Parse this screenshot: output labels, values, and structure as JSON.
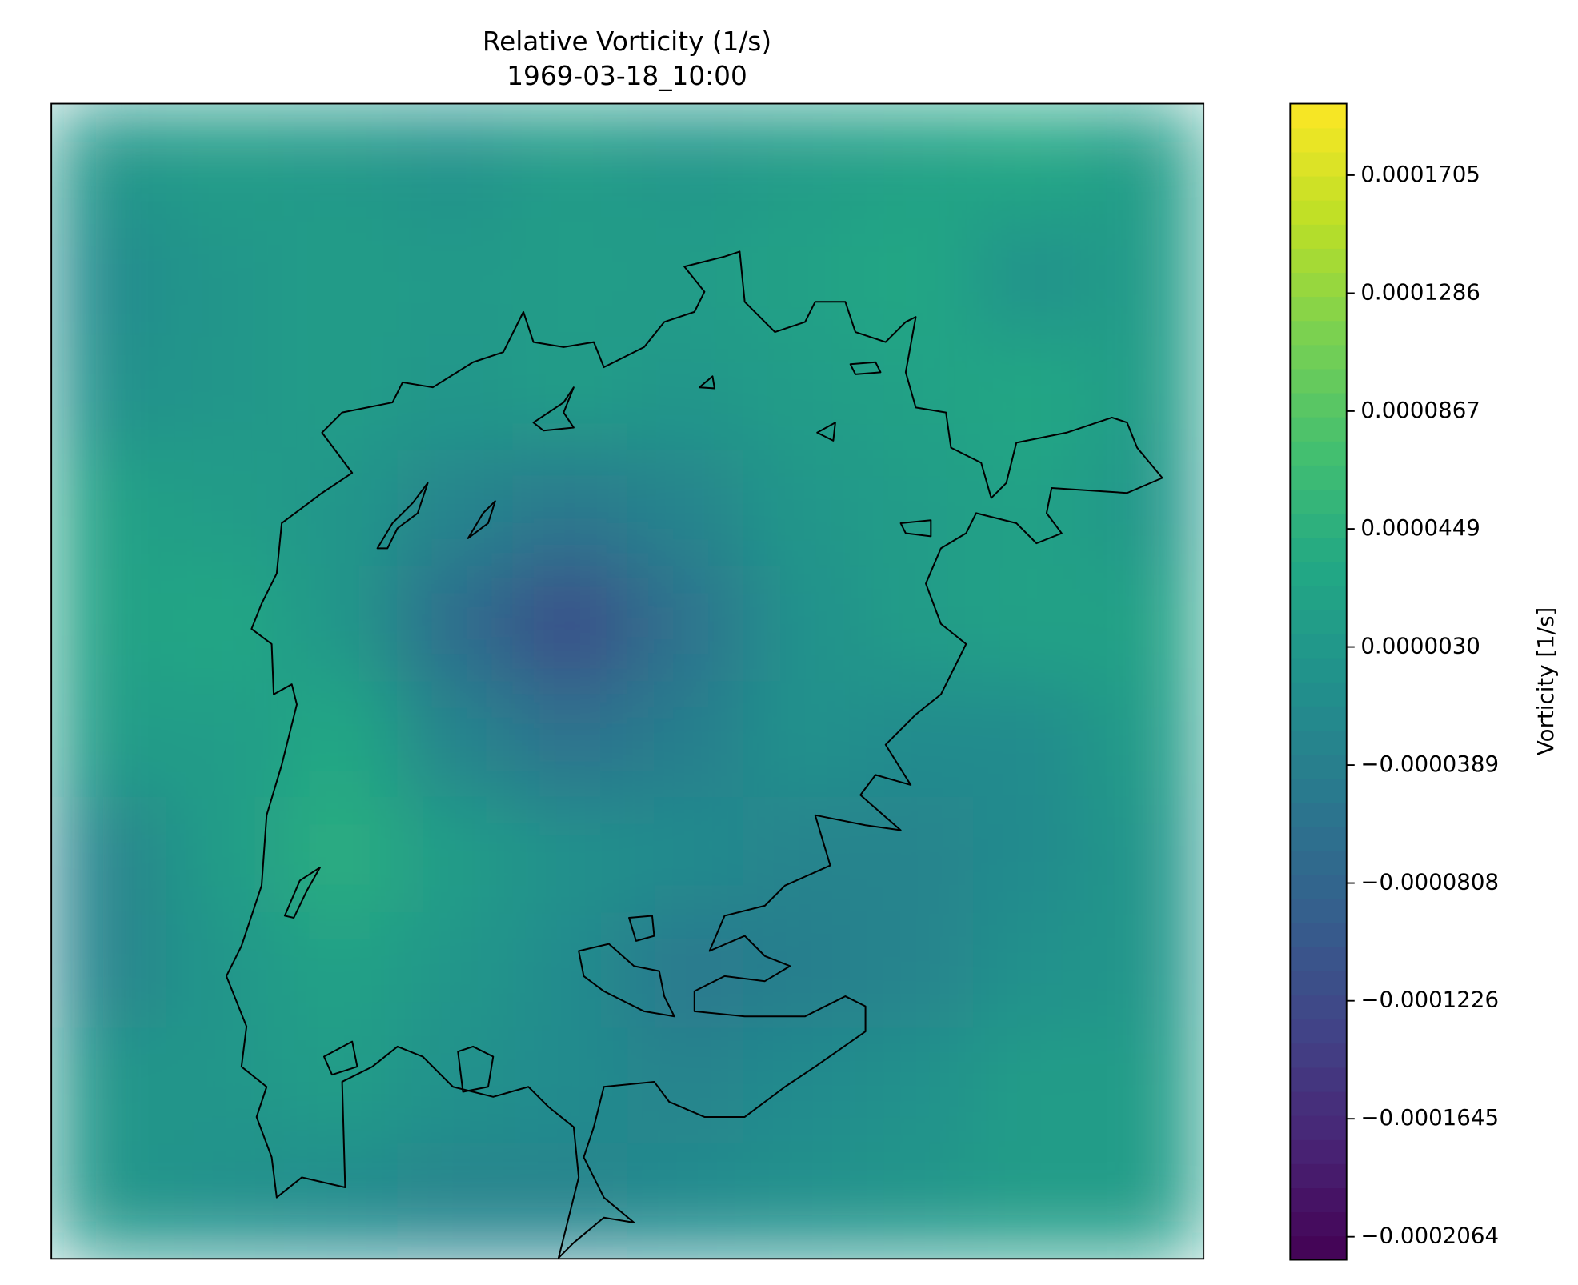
{
  "chart_data": {
    "type": "contour",
    "title": "Relative Vorticity (1/s)",
    "subtitle": "1969-03-18_10:00",
    "colorbar_label": "Vorticity [1/s]",
    "colormap": "viridis",
    "clim": [
      -0.0002146,
      0.0001959
    ],
    "cticks": [
      {
        "value": -0.0002064,
        "label": "−0.0002064"
      },
      {
        "value": -0.0001645,
        "label": "−0.0001645"
      },
      {
        "value": -0.0001226,
        "label": "−0.0001226"
      },
      {
        "value": -8.08e-05,
        "label": "−0.0000808"
      },
      {
        "value": -3.89e-05,
        "label": "−0.0000389"
      },
      {
        "value": 3e-06,
        "label": "0.0000030"
      },
      4.49e-05,
      8.67e-05,
      0.0001286,
      0.0001705
    ],
    "z": [
      [
        0,
        1e-05,
        5e-06,
        -5e-06,
        1e-05,
        0,
        1e-05,
        2e-05,
        3e-05,
        1e-05
      ],
      [
        -2e-05,
        0,
        1e-05,
        5e-06,
        1e-05,
        1e-05,
        2e-05,
        3e-05,
        -1e-05,
        1e-05
      ],
      [
        -1e-05,
        0,
        1e-05,
        0,
        1e-05,
        0,
        1e-05,
        2e-05,
        3e-05,
        1e-05
      ],
      [
        2e-05,
        1e-05,
        0,
        -3e-05,
        -5e-05,
        -3e-05,
        0,
        1e-05,
        2e-05,
        0
      ],
      [
        2e-05,
        3e-05,
        0,
        -7e-05,
        -0.00012,
        -6e-05,
        -1e-05,
        1e-05,
        2e-05,
        2e-05
      ],
      [
        1e-05,
        1e-05,
        3e-05,
        -3e-05,
        -6e-05,
        -4e-05,
        -1e-05,
        -2e-05,
        -2e-05,
        1e-05
      ],
      [
        -3e-05,
        1e-05,
        4e-05,
        1e-05,
        -1e-05,
        -2e-05,
        -3e-05,
        -3e-05,
        -2e-05,
        0
      ],
      [
        -3e-05,
        0,
        2e-05,
        0,
        -2e-05,
        -5e-05,
        -4e-05,
        -3e-05,
        -1e-05,
        0
      ],
      [
        0,
        0,
        1e-05,
        -1e-05,
        -2e-05,
        -3e-05,
        -2e-05,
        -1e-05,
        1e-05,
        1e-05
      ],
      [
        0,
        -1e-05,
        -2e-05,
        -3e-05,
        -3e-05,
        -2e-05,
        -1e-05,
        0,
        1e-05,
        1e-05
      ]
    ]
  }
}
